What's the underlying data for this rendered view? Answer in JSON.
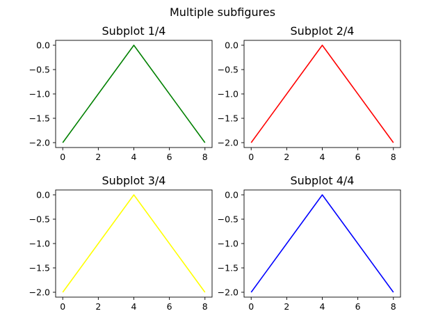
{
  "figure": {
    "suptitle": "Multiple subfigures"
  },
  "chart_data": [
    {
      "type": "line",
      "title": "Subplot 1/4",
      "xlabel": "",
      "ylabel": "",
      "x": [
        0,
        4,
        8
      ],
      "series": [
        {
          "values": [
            -2.0,
            0.0,
            -2.0
          ],
          "color": "#008000"
        }
      ],
      "xlim": [
        -0.4,
        8.4
      ],
      "ylim": [
        -2.1,
        0.1
      ],
      "xticks": [
        0,
        2,
        4,
        6,
        8
      ],
      "xticklabels": [
        "0",
        "2",
        "4",
        "6",
        "8"
      ],
      "yticks": [
        0.0,
        -0.5,
        -1.0,
        -1.5,
        -2.0
      ],
      "yticklabels": [
        "0.0",
        "−0.5",
        "−1.0",
        "−1.5",
        "−2.0"
      ],
      "grid": false
    },
    {
      "type": "line",
      "title": "Subplot 2/4",
      "xlabel": "",
      "ylabel": "",
      "x": [
        0,
        4,
        8
      ],
      "series": [
        {
          "values": [
            -2.0,
            0.0,
            -2.0
          ],
          "color": "#ff0000"
        }
      ],
      "xlim": [
        -0.4,
        8.4
      ],
      "ylim": [
        -2.1,
        0.1
      ],
      "xticks": [
        0,
        2,
        4,
        6,
        8
      ],
      "xticklabels": [
        "0",
        "2",
        "4",
        "6",
        "8"
      ],
      "yticks": [
        0.0,
        -0.5,
        -1.0,
        -1.5,
        -2.0
      ],
      "yticklabels": [
        "0.0",
        "−0.5",
        "−1.0",
        "−1.5",
        "−2.0"
      ],
      "grid": false
    },
    {
      "type": "line",
      "title": "Subplot 3/4",
      "xlabel": "",
      "ylabel": "",
      "x": [
        0,
        4,
        8
      ],
      "series": [
        {
          "values": [
            -2.0,
            0.0,
            -2.0
          ],
          "color": "#ffff00"
        }
      ],
      "xlim": [
        -0.4,
        8.4
      ],
      "ylim": [
        -2.1,
        0.1
      ],
      "xticks": [
        0,
        2,
        4,
        6,
        8
      ],
      "xticklabels": [
        "0",
        "2",
        "4",
        "6",
        "8"
      ],
      "yticks": [
        0.0,
        -0.5,
        -1.0,
        -1.5,
        -2.0
      ],
      "yticklabels": [
        "0.0",
        "−0.5",
        "−1.0",
        "−1.5",
        "−2.0"
      ],
      "grid": false
    },
    {
      "type": "line",
      "title": "Subplot 4/4",
      "xlabel": "",
      "ylabel": "",
      "x": [
        0,
        4,
        8
      ],
      "series": [
        {
          "values": [
            -2.0,
            0.0,
            -2.0
          ],
          "color": "#0000ff"
        }
      ],
      "xlim": [
        -0.4,
        8.4
      ],
      "ylim": [
        -2.1,
        0.1
      ],
      "xticks": [
        0,
        2,
        4,
        6,
        8
      ],
      "xticklabels": [
        "0",
        "2",
        "4",
        "6",
        "8"
      ],
      "yticks": [
        0.0,
        -0.5,
        -1.0,
        -1.5,
        -2.0
      ],
      "yticklabels": [
        "0.0",
        "−0.5",
        "−1.0",
        "−1.5",
        "−2.0"
      ],
      "grid": false
    }
  ]
}
